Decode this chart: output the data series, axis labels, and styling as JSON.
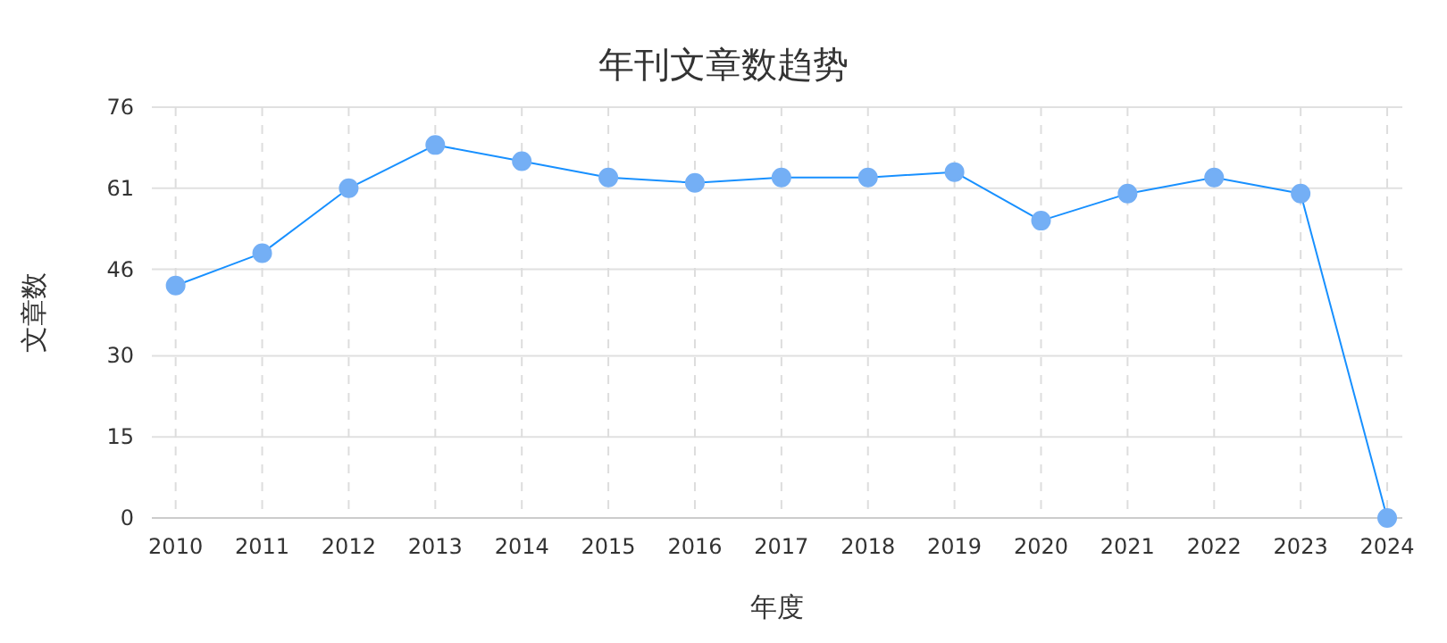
{
  "chart_data": {
    "type": "line",
    "title": "年刊文章数趋势",
    "xlabel": "年度",
    "ylabel": "文章数",
    "categories": [
      "2010",
      "2011",
      "2012",
      "2013",
      "2014",
      "2015",
      "2016",
      "2017",
      "2018",
      "2019",
      "2020",
      "2021",
      "2022",
      "2023",
      "2024"
    ],
    "series": [
      {
        "color": "#1890ff",
        "values": [
          43,
          49,
          61,
          69,
          66,
          63,
          62,
          63,
          63,
          64,
          55,
          60,
          63,
          60,
          0
        ]
      }
    ],
    "ylim": [
      0,
      76
    ],
    "yticks": [
      0,
      15,
      30,
      46,
      61,
      76
    ],
    "grid": true,
    "marker": "circle",
    "line_style": "solid"
  }
}
